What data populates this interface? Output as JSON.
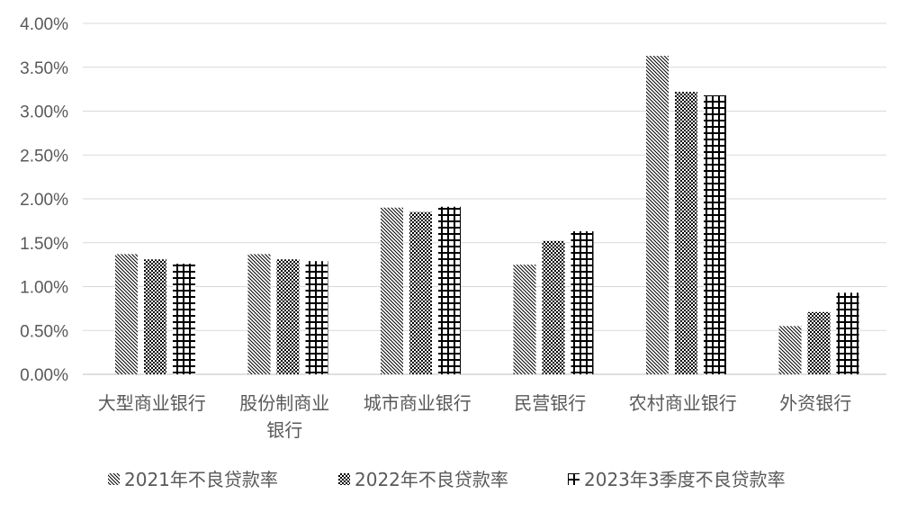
{
  "chart_data": {
    "type": "bar",
    "title": "",
    "xlabel": "",
    "ylabel": "",
    "categories": [
      [
        "大型商业银行"
      ],
      [
        "股份制商业",
        "银行"
      ],
      [
        "城市商业银行"
      ],
      [
        "民营银行"
      ],
      [
        "农村商业银行"
      ],
      [
        "外资银行"
      ]
    ],
    "series": [
      {
        "name": "2021年不良贷款率",
        "pattern": "diagonal",
        "values": [
          1.37,
          1.37,
          1.9,
          1.25,
          3.63,
          0.55
        ]
      },
      {
        "name": "2022年不良贷款率",
        "pattern": "checker",
        "values": [
          1.31,
          1.31,
          1.85,
          1.52,
          3.22,
          0.71
        ]
      },
      {
        "name": "2023年3季度不良贷款率",
        "pattern": "grid",
        "values": [
          1.26,
          1.29,
          1.91,
          1.63,
          3.18,
          0.93
        ]
      }
    ],
    "ylim": [
      0,
      4.0
    ],
    "yticks": [
      "0.00%",
      "0.50%",
      "1.00%",
      "1.50%",
      "2.00%",
      "2.50%",
      "3.00%",
      "3.50%",
      "4.00%"
    ],
    "grid": true,
    "legend_position": "bottom",
    "colors": {
      "ink": "#000000",
      "text": "#595959",
      "grid": "#d9d9d9",
      "background": "#ffffff"
    }
  }
}
